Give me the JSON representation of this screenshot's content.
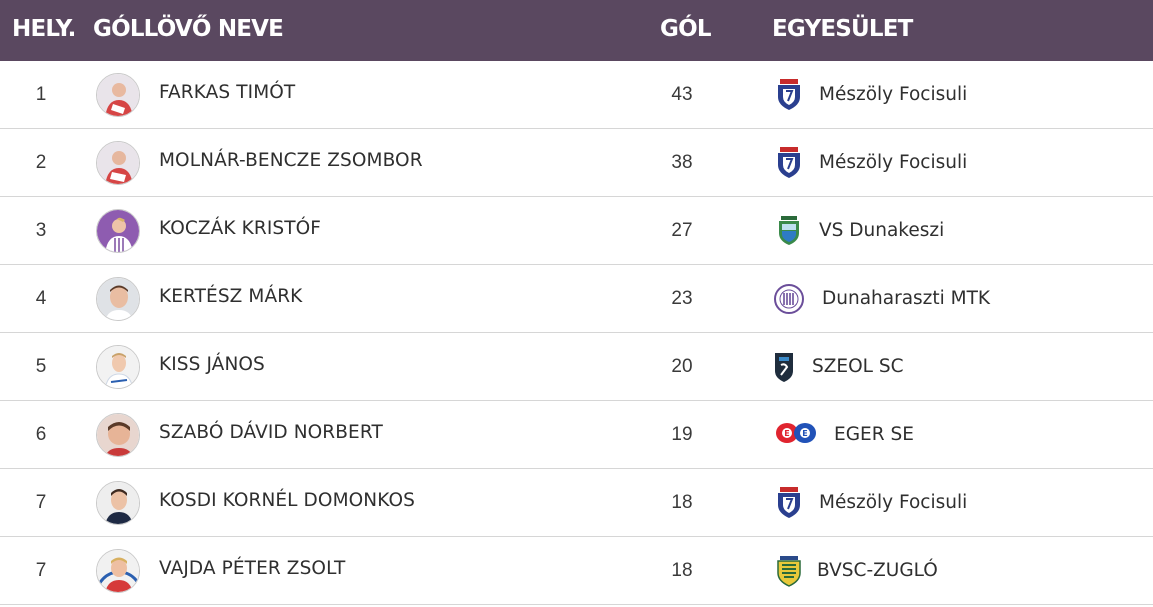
{
  "header": {
    "rank_label": "HELY.",
    "name_label": "GÓLLÖVŐ NEVE",
    "goals_label": "GÓL",
    "club_label": "EGYESÜLET",
    "background": "#5a4860"
  },
  "rows": [
    {
      "rank": "1",
      "name": "FARKAS TIMÓT",
      "goals": "43",
      "club": "Mészöly Focisuli",
      "crest_icon": "meszoly-focisuli-crest-icon"
    },
    {
      "rank": "2",
      "name": "MOLNÁR-BENCZE ZSOMBOR",
      "goals": "38",
      "club": "Mészöly Focisuli",
      "crest_icon": "meszoly-focisuli-crest-icon"
    },
    {
      "rank": "3",
      "name": "KOCZÁK KRISTÓF",
      "goals": "27",
      "club": "VS Dunakeszi",
      "crest_icon": "vs-dunakeszi-crest-icon"
    },
    {
      "rank": "4",
      "name": "KERTÉSZ MÁRK",
      "goals": "23",
      "club": "Dunaharaszti MTK",
      "crest_icon": "dunaharaszti-mtk-crest-icon"
    },
    {
      "rank": "5",
      "name": "KISS JÁNOS",
      "goals": "20",
      "club": "SZEOL SC",
      "crest_icon": "szeol-sc-crest-icon"
    },
    {
      "rank": "6",
      "name": "SZABÓ DÁVID NORBERT",
      "goals": "19",
      "club": "EGER SE",
      "crest_icon": "eger-se-crest-icon"
    },
    {
      "rank": "7",
      "name": "KOSDI KORNÉL DOMONKOS",
      "goals": "18",
      "club": "Mészöly Focisuli",
      "crest_icon": "meszoly-focisuli-crest-icon"
    },
    {
      "rank": "7",
      "name": "VAJDA PÉTER ZSOLT",
      "goals": "18",
      "club": "BVSC-ZUGLÓ",
      "crest_icon": "bvsc-zuglo-crest-icon"
    }
  ]
}
